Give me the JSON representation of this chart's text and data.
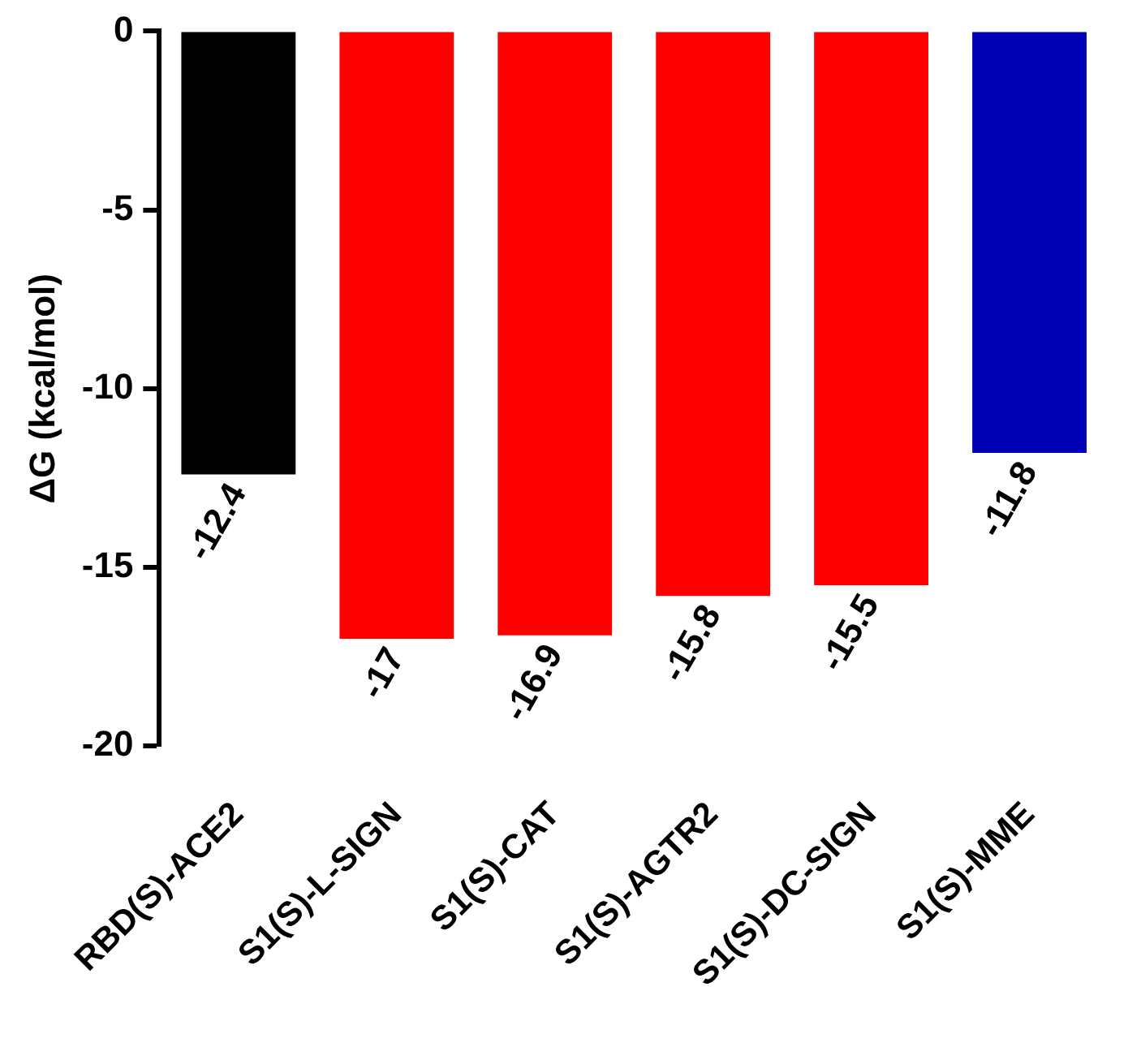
{
  "chart_data": {
    "type": "bar",
    "ylabel": "ΔG (kcal/mol)",
    "categories": [
      "RBD(S)-ACE2",
      "S1(S)-L-SIGN",
      "S1(S)-CAT",
      "S1(S)-AGTR2",
      "S1(S)-DC-SIGN",
      "S1(S)-MME"
    ],
    "values": [
      -12.4,
      -17,
      -16.9,
      -15.8,
      -15.5,
      -11.8
    ],
    "colors": [
      "#000000",
      "#ff0000",
      "#ff0000",
      "#ff0000",
      "#ff0000",
      "#0000b4"
    ],
    "ylim": [
      -20,
      0
    ],
    "yticks": [
      0,
      -5,
      -10,
      -15,
      -20
    ],
    "grid": false,
    "legend": false,
    "data_labels": true
  }
}
